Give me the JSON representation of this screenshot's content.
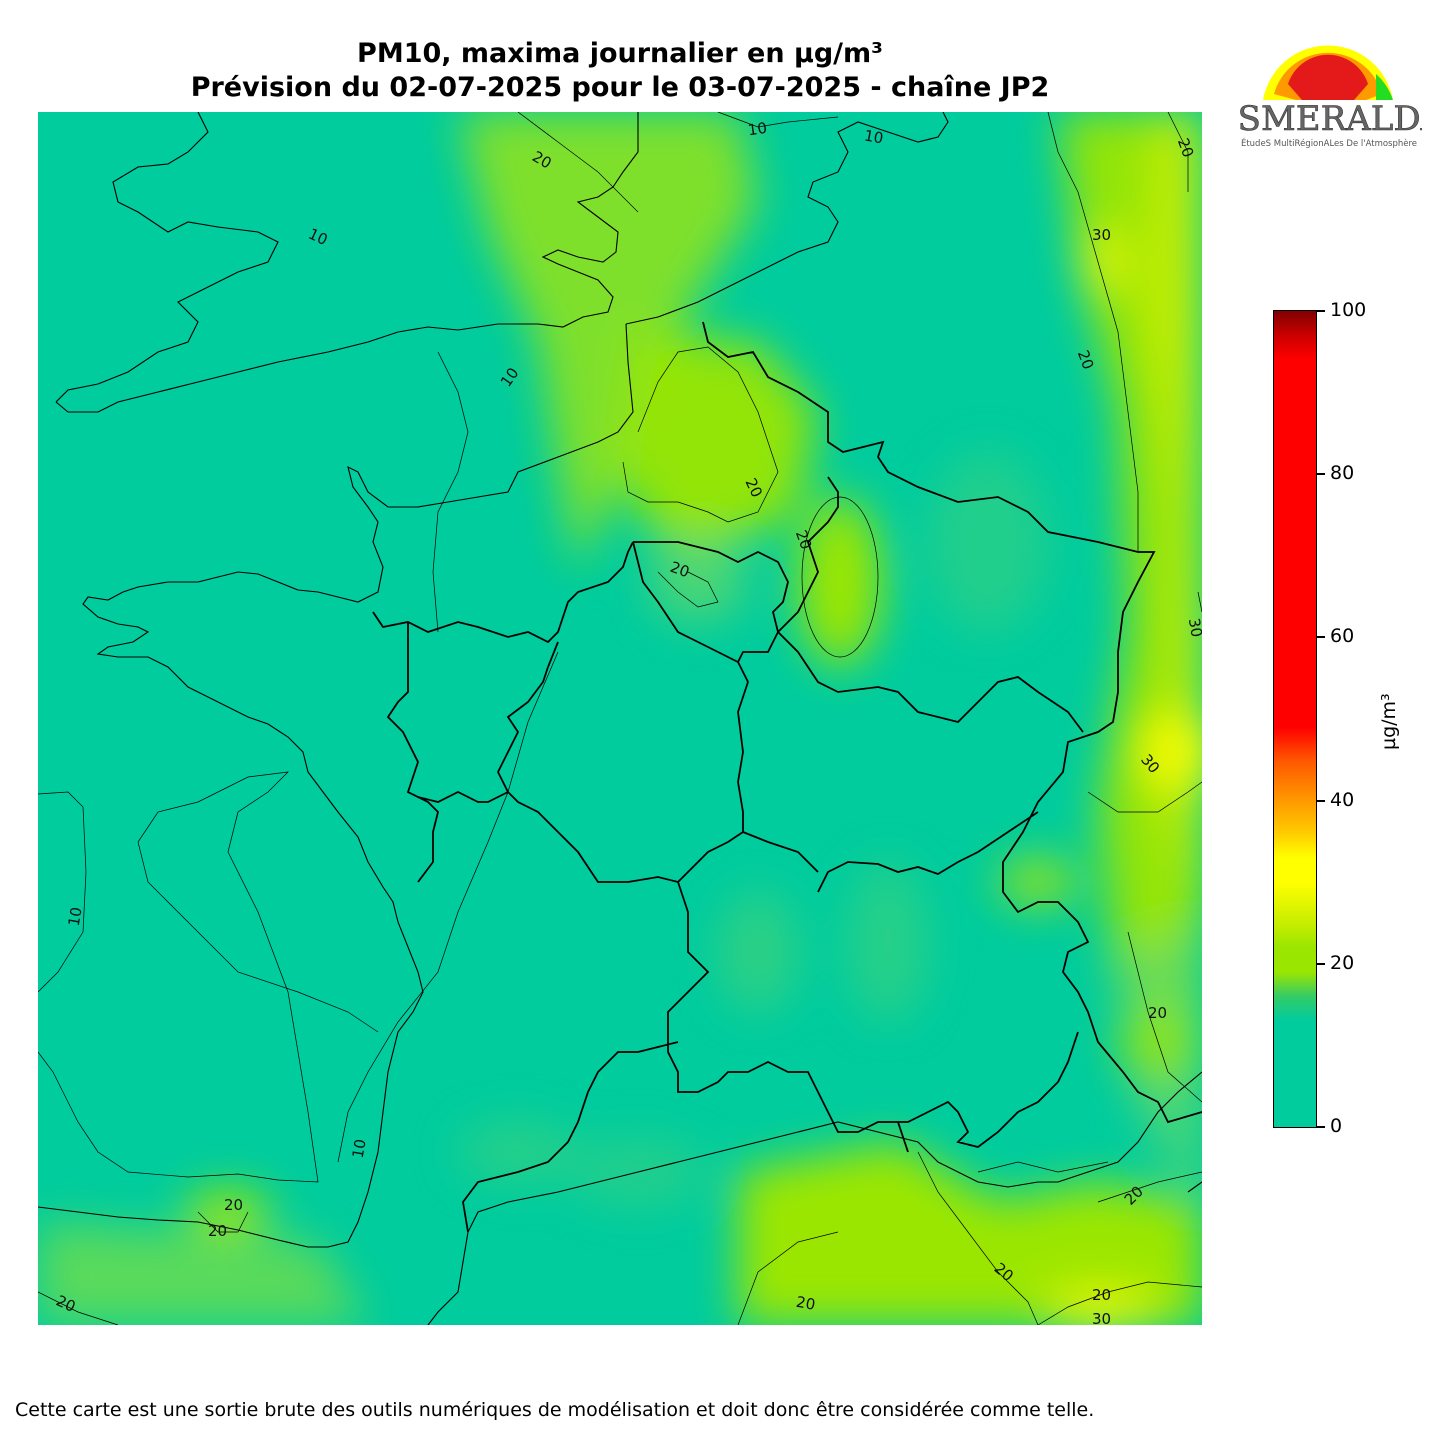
{
  "title": {
    "line1": "PM10, maxima journalier en µg/m³",
    "line2": "Prévision du 02-07-2025 pour le 03-07-2025 - chaîne JP2"
  },
  "logo": {
    "name": "ESMERALDA",
    "subtitle": "ÉtudeS MultiRégionALes De l'Atmosphère"
  },
  "colorbar": {
    "unit": "µg/m³",
    "min": 0,
    "max": 100,
    "ticks": [
      "0",
      "20",
      "40",
      "60",
      "80",
      "100"
    ],
    "colors": [
      "#00cc9e",
      "#9be600",
      "#ffff00",
      "#ff9900",
      "#ff0000",
      "#800000"
    ]
  },
  "contour_labels": [
    "10",
    "10",
    "10",
    "10",
    "10",
    "10",
    "20",
    "20",
    "20",
    "20",
    "20",
    "20",
    "20",
    "20",
    "20",
    "20",
    "20",
    "20",
    "20",
    "20",
    "30",
    "30",
    "30",
    "30"
  ],
  "footer": "Cette carte est une sortie brute des outils numériques de modélisation et doit donc être considérée comme telle."
}
